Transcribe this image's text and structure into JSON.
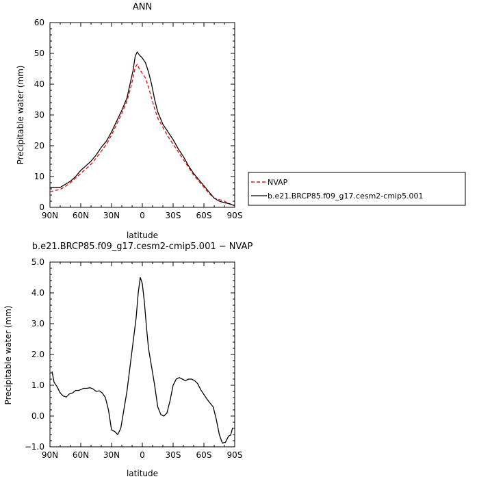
{
  "chart_data": [
    {
      "type": "line",
      "title": "ANN",
      "xlabel": "latitude",
      "ylabel": "Precipitable water (mm)",
      "xlim": [
        -90,
        90
      ],
      "ylim": [
        0,
        60
      ],
      "x_ticks": [
        {
          "value": -90,
          "label": "90N"
        },
        {
          "value": -60,
          "label": "60N"
        },
        {
          "value": -30,
          "label": "30N"
        },
        {
          "value": 0,
          "label": "0"
        },
        {
          "value": 30,
          "label": "30S"
        },
        {
          "value": 60,
          "label": "60S"
        },
        {
          "value": 90,
          "label": "90S"
        }
      ],
      "y_ticks": [
        {
          "value": 0,
          "label": "0"
        },
        {
          "value": 10,
          "label": "10"
        },
        {
          "value": 20,
          "label": "20"
        },
        {
          "value": 30,
          "label": "30"
        },
        {
          "value": 40,
          "label": "40"
        },
        {
          "value": 50,
          "label": "50"
        },
        {
          "value": 60,
          "label": "60"
        }
      ],
      "legend_position": "right",
      "series": [
        {
          "name": "NVAP",
          "color": "#ff0000",
          "dash": "dashed",
          "x": [
            -90,
            -85,
            -80,
            -75,
            -70,
            -65,
            -60,
            -55,
            -50,
            -45,
            -40,
            -35,
            -30,
            -25,
            -20,
            -15,
            -12,
            -9,
            -7,
            -5,
            -3,
            0,
            3,
            6,
            9,
            12,
            15,
            20,
            25,
            30,
            35,
            40,
            45,
            50,
            55,
            60,
            65,
            70,
            75,
            80,
            85,
            90
          ],
          "y": [
            5,
            5.5,
            5.8,
            6.8,
            8,
            9.5,
            11,
            12.5,
            14,
            16,
            18.2,
            20.5,
            23.5,
            27,
            30.5,
            34.5,
            38,
            42,
            45.5,
            46.5,
            45,
            43.5,
            42,
            39,
            35.5,
            32,
            29,
            26,
            23,
            20.5,
            18,
            15.5,
            13,
            10.5,
            8.5,
            6.5,
            4.5,
            3,
            2.5,
            2,
            1,
            0.8
          ]
        },
        {
          "name": "b.e21.BRCP85.f09_g17.cesm2-cmip5.001",
          "color": "#000000",
          "dash": "solid",
          "x": [
            -90,
            -85,
            -80,
            -75,
            -70,
            -65,
            -60,
            -55,
            -50,
            -45,
            -40,
            -35,
            -30,
            -25,
            -20,
            -15,
            -12,
            -9,
            -7,
            -5,
            -3,
            0,
            3,
            6,
            9,
            12,
            15,
            20,
            25,
            30,
            35,
            40,
            45,
            50,
            55,
            60,
            65,
            70,
            75,
            80,
            85,
            90
          ],
          "y": [
            6.5,
            6.5,
            6.5,
            7.5,
            8.5,
            10,
            12,
            13.5,
            15,
            17,
            19.5,
            21.5,
            24.5,
            28,
            31.5,
            35.5,
            40,
            44.5,
            49,
            50.5,
            49.5,
            48.5,
            47,
            44,
            40,
            35,
            31,
            27,
            24.5,
            22,
            19,
            16.5,
            13.5,
            11,
            9,
            7,
            5,
            3,
            2,
            1.5,
            1.2,
            0.5
          ]
        }
      ]
    },
    {
      "type": "line",
      "title": "b.e21.BRCP85.f09_g17.cesm2-cmip5.001  −  NVAP",
      "xlabel": "latitude",
      "ylabel": "Precipitable water (mm)",
      "xlim": [
        -90,
        90
      ],
      "ylim": [
        -1.0,
        5.0
      ],
      "x_ticks": [
        {
          "value": -90,
          "label": "90N"
        },
        {
          "value": -60,
          "label": "60N"
        },
        {
          "value": -30,
          "label": "30N"
        },
        {
          "value": 0,
          "label": "0"
        },
        {
          "value": 30,
          "label": "30S"
        },
        {
          "value": 60,
          "label": "60S"
        },
        {
          "value": 90,
          "label": "90S"
        }
      ],
      "y_ticks": [
        {
          "value": -1,
          "label": "−1.0"
        },
        {
          "value": 0,
          "label": "0.0"
        },
        {
          "value": 1,
          "label": "1.0"
        },
        {
          "value": 2,
          "label": "2.0"
        },
        {
          "value": 3,
          "label": "3.0"
        },
        {
          "value": 4,
          "label": "4.0"
        },
        {
          "value": 5,
          "label": "5.0"
        }
      ],
      "series": [
        {
          "color": "#000000",
          "dash": "solid",
          "x": [
            -88,
            -86,
            -83,
            -80,
            -77,
            -74,
            -71,
            -68,
            -65,
            -62,
            -60,
            -57,
            -54,
            -51,
            -48,
            -45,
            -42,
            -39,
            -36,
            -33,
            -30,
            -27,
            -24,
            -21,
            -18,
            -15,
            -12,
            -9,
            -6,
            -4,
            -2,
            0,
            2,
            4,
            6,
            9,
            12,
            15,
            18,
            21,
            24,
            27,
            30,
            33,
            36,
            39,
            42,
            45,
            48,
            51,
            54,
            57,
            60,
            63,
            66,
            69,
            72,
            75,
            78,
            81,
            84,
            86,
            88
          ],
          "y": [
            1.45,
            1.1,
            0.95,
            0.75,
            0.65,
            0.62,
            0.72,
            0.75,
            0.83,
            0.83,
            0.86,
            0.9,
            0.9,
            0.92,
            0.88,
            0.8,
            0.82,
            0.75,
            0.6,
            0.2,
            -0.45,
            -0.5,
            -0.6,
            -0.4,
            0.2,
            0.8,
            1.6,
            2.4,
            3.2,
            4.0,
            4.5,
            4.3,
            3.7,
            2.9,
            2.2,
            1.6,
            1.0,
            0.3,
            0.05,
            0.0,
            0.1,
            0.5,
            1.0,
            1.2,
            1.25,
            1.2,
            1.15,
            1.2,
            1.2,
            1.15,
            1.05,
            0.85,
            0.7,
            0.55,
            0.42,
            0.3,
            -0.1,
            -0.6,
            -0.88,
            -0.85,
            -0.65,
            -0.62,
            -0.38
          ]
        }
      ]
    }
  ]
}
